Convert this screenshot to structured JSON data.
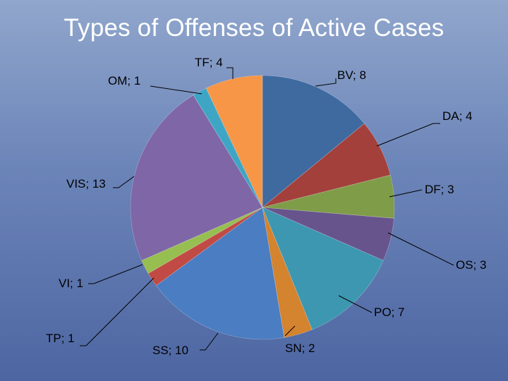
{
  "chart_data": {
    "type": "pie",
    "title": "Types of Offenses of Active Cases",
    "slices": [
      {
        "label": "BV",
        "value": 8,
        "text": "BV; 8",
        "color": "#3e6aa0"
      },
      {
        "label": "DA",
        "value": 4,
        "text": "DA; 4",
        "color": "#a3403c"
      },
      {
        "label": "DF",
        "value": 3,
        "text": "DF; 3",
        "color": "#7f9c48"
      },
      {
        "label": "OS",
        "value": 3,
        "text": "OS; 3",
        "color": "#68548c"
      },
      {
        "label": "PO",
        "value": 7,
        "text": "PO; 7",
        "color": "#3d97b0"
      },
      {
        "label": "SN",
        "value": 2,
        "text": "SN; 2",
        "color": "#d4832e"
      },
      {
        "label": "SS",
        "value": 10,
        "text": "SS; 10",
        "color": "#4a7dc1"
      },
      {
        "label": "TP",
        "value": 1,
        "text": "TP; 1",
        "color": "#c14a45"
      },
      {
        "label": "VI",
        "value": 1,
        "text": "VI; 1",
        "color": "#97be50"
      },
      {
        "label": "VIS",
        "value": 13,
        "text": "VIS; 13",
        "color": "#7f66a6"
      },
      {
        "label": "OM",
        "value": 1,
        "text": "OM; 1",
        "color": "#3ea6c4"
      },
      {
        "label": "TF",
        "value": 4,
        "text": "TF; 4",
        "color": "#f79646"
      }
    ]
  }
}
